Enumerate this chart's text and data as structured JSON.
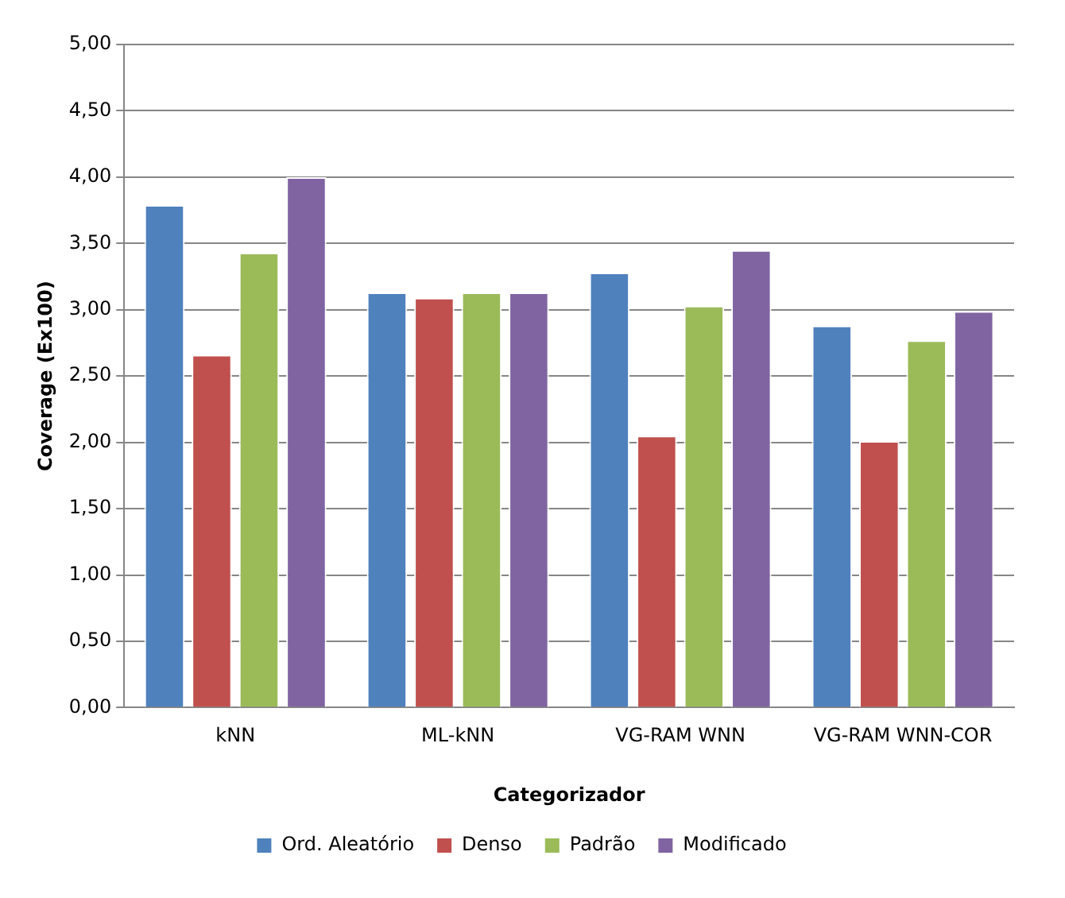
{
  "chart_data": {
    "type": "bar",
    "xlabel": "Categorizador",
    "ylabel": "Coverage (Ex100)",
    "categories": [
      "kNN",
      "ML-kNN",
      "VG-RAM WNN",
      "VG-RAM WNN-COR"
    ],
    "series": [
      {
        "name": "Ord. Aleatório",
        "color": "#4f81bd",
        "values": [
          3.79,
          3.13,
          3.28,
          2.88
        ]
      },
      {
        "name": "Denso",
        "color": "#c0504d",
        "values": [
          2.66,
          3.09,
          2.05,
          2.01
        ]
      },
      {
        "name": "Padrão",
        "color": "#9bbb59",
        "values": [
          3.43,
          3.13,
          3.03,
          2.77
        ]
      },
      {
        "name": "Modificado",
        "color": "#8064a2",
        "values": [
          4.0,
          3.13,
          3.45,
          2.99
        ]
      }
    ],
    "ylim": [
      0,
      5
    ],
    "yticks": [
      {
        "value": 0,
        "label": "0,00"
      },
      {
        "value": 0.5,
        "label": "0,50"
      },
      {
        "value": 1,
        "label": "1,00"
      },
      {
        "value": 1.5,
        "label": "1,50"
      },
      {
        "value": 2,
        "label": "2,00"
      },
      {
        "value": 2.5,
        "label": "2,50"
      },
      {
        "value": 3,
        "label": "3,00"
      },
      {
        "value": 3.5,
        "label": "3,50"
      },
      {
        "value": 4,
        "label": "4,00"
      },
      {
        "value": 4.5,
        "label": "4,50"
      },
      {
        "value": 5,
        "label": "5,00"
      }
    ],
    "grid": "y",
    "legend": "bottom"
  }
}
